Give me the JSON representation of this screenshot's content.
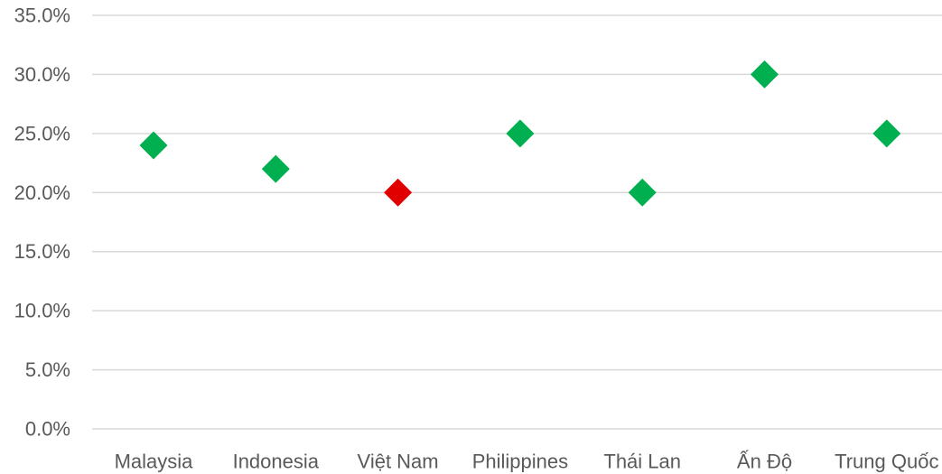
{
  "chart_data": {
    "type": "scatter",
    "marker": "diamond",
    "categories": [
      "Malaysia",
      "Indonesia",
      "Việt Nam",
      "Philippines",
      "Thái Lan",
      "Ấn Độ",
      "Trung Quốc"
    ],
    "values": [
      0.24,
      0.22,
      0.2,
      0.25,
      0.2,
      0.3,
      0.25
    ],
    "highlight_category": "Việt Nam",
    "colors": {
      "default": "#00b050",
      "highlight": "#e00000"
    },
    "ylim": [
      0,
      0.35
    ],
    "yticks": [
      0,
      0.05,
      0.1,
      0.15,
      0.2,
      0.25,
      0.3,
      0.35
    ],
    "ytick_labels": [
      "0.0%",
      "5.0%",
      "10.0%",
      "15.0%",
      "20.0%",
      "25.0%",
      "30.0%",
      "35.0%"
    ],
    "grid": true,
    "legend": "none",
    "title": "",
    "xlabel": "",
    "ylabel": ""
  }
}
